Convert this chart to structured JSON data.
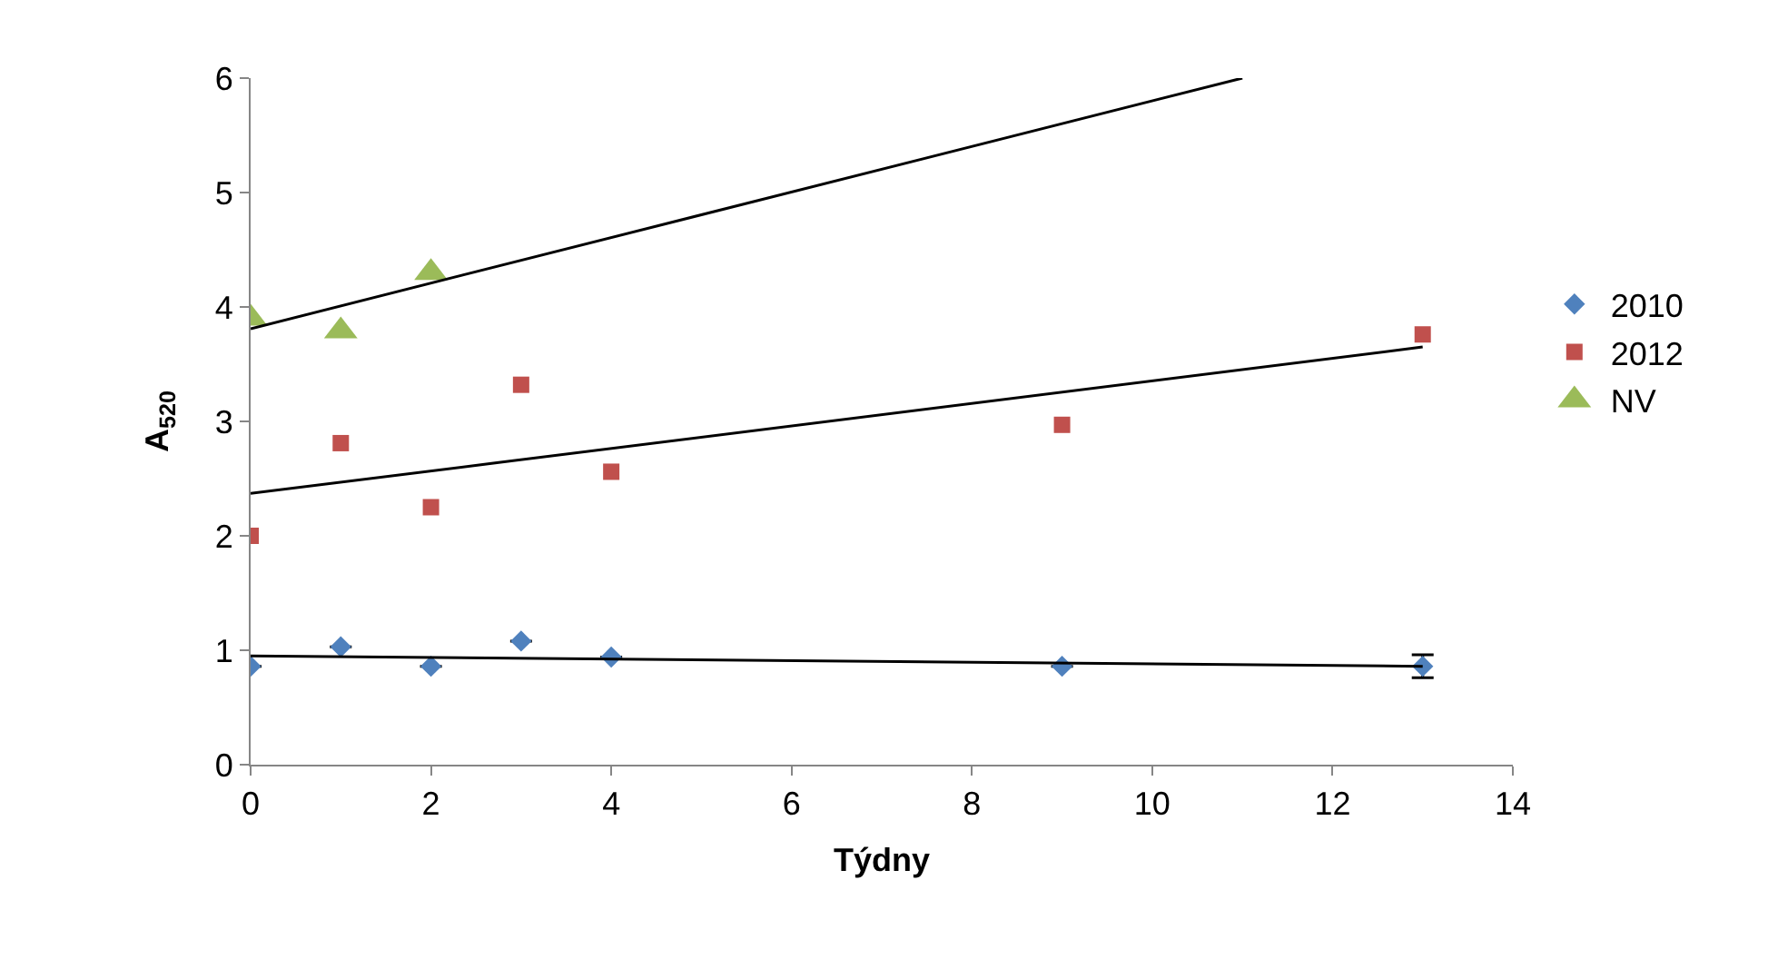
{
  "chart_data": {
    "type": "scatter",
    "xlabel": "Týdny",
    "ylabel": "A$_{520}$",
    "xlim": [
      0,
      14
    ],
    "xticks": [
      0,
      2,
      4,
      6,
      8,
      10,
      12,
      14
    ],
    "ylim": [
      0,
      6
    ],
    "yticks": [
      0,
      1,
      2,
      3,
      4,
      5,
      6
    ],
    "grid": false,
    "legend": "right",
    "series": [
      {
        "name": "2010",
        "color": "#4f81bd",
        "marker": "diamond",
        "x": [
          0,
          1,
          2,
          3,
          4,
          9,
          13
        ],
        "values": [
          0.86,
          1.03,
          0.86,
          1.08,
          0.94,
          0.86,
          0.86
        ],
        "errors": [
          null,
          null,
          null,
          null,
          null,
          null,
          0.1
        ]
      },
      {
        "name": "2012",
        "color": "#c0504d",
        "marker": "square",
        "x": [
          0,
          1,
          2,
          3,
          4,
          9,
          13
        ],
        "values": [
          2.0,
          2.81,
          2.25,
          3.32,
          2.56,
          2.97,
          3.76
        ]
      },
      {
        "name": "NV",
        "color": "#9bbb59",
        "marker": "triangle",
        "x": [
          0,
          1,
          2
        ],
        "values": [
          3.9,
          3.79,
          4.3
        ]
      },
      {
        "type": "line",
        "color": "#000000",
        "x": [
          0,
          13
        ],
        "values": [
          0.95,
          0.86
        ]
      },
      {
        "type": "line",
        "color": "#000000",
        "x": [
          0,
          13
        ],
        "values": [
          2.37,
          3.65
        ]
      },
      {
        "type": "line",
        "color": "#000000",
        "x": [
          0,
          11
        ],
        "values": [
          3.81,
          6.0
        ]
      }
    ]
  }
}
